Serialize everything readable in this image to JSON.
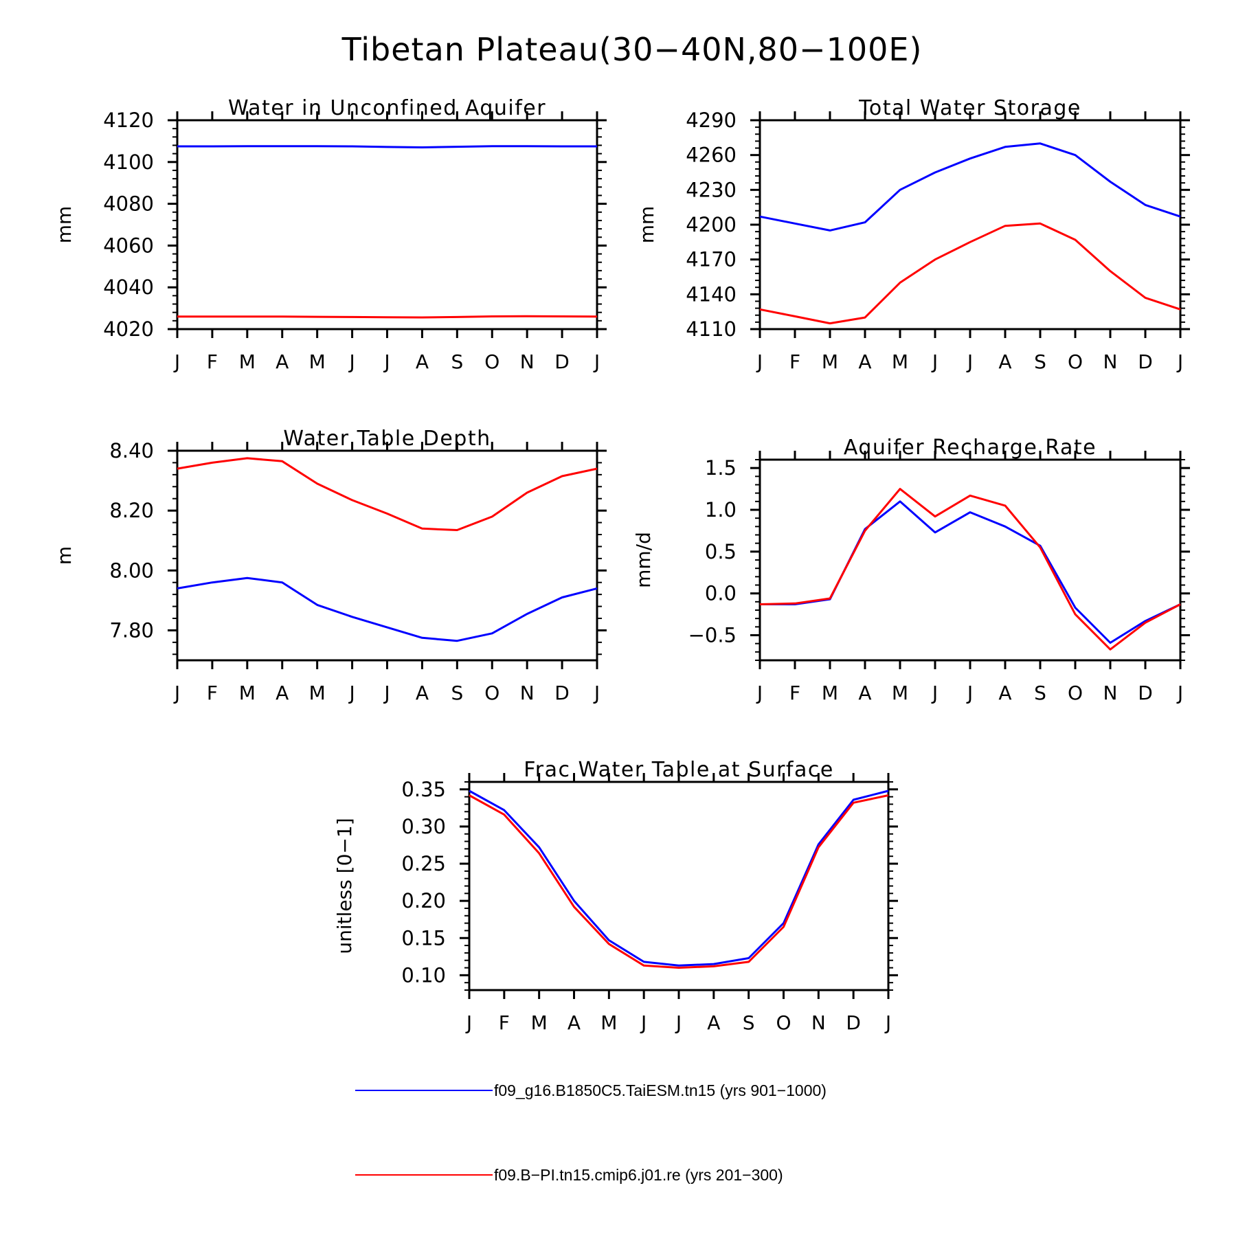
{
  "figure": {
    "title": "Tibetan Plateau(30−40N,80−100E)"
  },
  "colors": {
    "blue": "#0000ff",
    "red": "#ff0000",
    "axis": "#000000"
  },
  "legend": [
    {
      "label": "f09_g16.B1850C5.TaiESM.tn15 (yrs 901−1000)",
      "color": "#0000ff"
    },
    {
      "label": "f09.B−PI.tn15.cmip6.j01.re (yrs 201−300)",
      "color": "#ff0000"
    }
  ],
  "chart_data": [
    {
      "type": "line",
      "title": "Water in Unconfined Aquifer",
      "ylabel": "mm",
      "xlabel": "",
      "categories": [
        "J",
        "F",
        "M",
        "A",
        "M",
        "J",
        "J",
        "A",
        "S",
        "O",
        "N",
        "D",
        "J"
      ],
      "ylim": [
        4020,
        4120
      ],
      "yticks": [
        "4020",
        "4040",
        "4060",
        "4080",
        "4100",
        "4120"
      ],
      "grid": false,
      "series": [
        {
          "color": "#0000ff",
          "values": [
            4107.5,
            4107.5,
            4107.6,
            4107.6,
            4107.6,
            4107.5,
            4107.2,
            4107.0,
            4107.3,
            4107.6,
            4107.6,
            4107.5,
            4107.5
          ]
        },
        {
          "color": "#ff0000",
          "values": [
            4026.0,
            4026.0,
            4026.0,
            4026.0,
            4025.9,
            4025.8,
            4025.7,
            4025.6,
            4025.8,
            4026.1,
            4026.2,
            4026.1,
            4026.0
          ]
        }
      ]
    },
    {
      "type": "line",
      "title": "Total Water Storage",
      "ylabel": "mm",
      "xlabel": "",
      "categories": [
        "J",
        "F",
        "M",
        "A",
        "M",
        "J",
        "J",
        "A",
        "S",
        "O",
        "N",
        "D",
        "J"
      ],
      "ylim": [
        4110,
        4290
      ],
      "yticks": [
        "4110",
        "4140",
        "4170",
        "4200",
        "4230",
        "4260",
        "4290"
      ],
      "grid": false,
      "series": [
        {
          "color": "#0000ff",
          "values": [
            4207,
            4201,
            4195,
            4202,
            4230,
            4245,
            4257,
            4267,
            4270,
            4260,
            4237,
            4217,
            4207
          ]
        },
        {
          "color": "#ff0000",
          "values": [
            4127,
            4121,
            4115,
            4120,
            4150,
            4170,
            4185,
            4199,
            4201,
            4187,
            4160,
            4137,
            4127
          ]
        }
      ]
    },
    {
      "type": "line",
      "title": "Water Table Depth",
      "ylabel": "m",
      "xlabel": "",
      "categories": [
        "J",
        "F",
        "M",
        "A",
        "M",
        "J",
        "J",
        "A",
        "S",
        "O",
        "N",
        "D",
        "J"
      ],
      "ylim": [
        7.7,
        8.4
      ],
      "yticks": [
        "7.80",
        "8.00",
        "8.20",
        "8.40"
      ],
      "grid": false,
      "series": [
        {
          "color": "#0000ff",
          "values": [
            7.94,
            7.96,
            7.975,
            7.96,
            7.885,
            7.845,
            7.81,
            7.775,
            7.765,
            7.79,
            7.855,
            7.91,
            7.94
          ]
        },
        {
          "color": "#ff0000",
          "values": [
            8.34,
            8.36,
            8.375,
            8.365,
            8.29,
            8.235,
            8.19,
            8.14,
            8.135,
            8.18,
            8.26,
            8.315,
            8.34
          ]
        }
      ]
    },
    {
      "type": "line",
      "title": "Aquifer Recharge Rate",
      "ylabel": "mm/d",
      "xlabel": "",
      "categories": [
        "J",
        "F",
        "M",
        "A",
        "M",
        "J",
        "J",
        "A",
        "S",
        "O",
        "N",
        "D",
        "J"
      ],
      "ylim": [
        -0.8,
        1.6
      ],
      "yticks": [
        "−0.5",
        "0.0",
        "0.5",
        "1.0",
        "1.5"
      ],
      "grid": false,
      "series": [
        {
          "color": "#0000ff",
          "values": [
            -0.13,
            -0.13,
            -0.07,
            0.77,
            1.1,
            0.73,
            0.97,
            0.8,
            0.57,
            -0.17,
            -0.59,
            -0.33,
            -0.13
          ]
        },
        {
          "color": "#ff0000",
          "values": [
            -0.13,
            -0.12,
            -0.06,
            0.75,
            1.25,
            0.92,
            1.17,
            1.05,
            0.55,
            -0.25,
            -0.67,
            -0.35,
            -0.13
          ]
        }
      ]
    },
    {
      "type": "line",
      "title": "Frac Water Table at Surface",
      "ylabel": "unitless [0−1]",
      "xlabel": "",
      "categories": [
        "J",
        "F",
        "M",
        "A",
        "M",
        "J",
        "J",
        "A",
        "S",
        "O",
        "N",
        "D",
        "J"
      ],
      "ylim": [
        0.08,
        0.36
      ],
      "yticks": [
        "0.10",
        "0.15",
        "0.20",
        "0.25",
        "0.30",
        "0.35"
      ],
      "grid": false,
      "series": [
        {
          "color": "#0000ff",
          "values": [
            0.348,
            0.322,
            0.272,
            0.2,
            0.147,
            0.118,
            0.113,
            0.115,
            0.123,
            0.17,
            0.276,
            0.336,
            0.348
          ]
        },
        {
          "color": "#ff0000",
          "values": [
            0.342,
            0.316,
            0.264,
            0.192,
            0.142,
            0.113,
            0.11,
            0.112,
            0.118,
            0.165,
            0.272,
            0.332,
            0.342
          ]
        }
      ]
    }
  ]
}
